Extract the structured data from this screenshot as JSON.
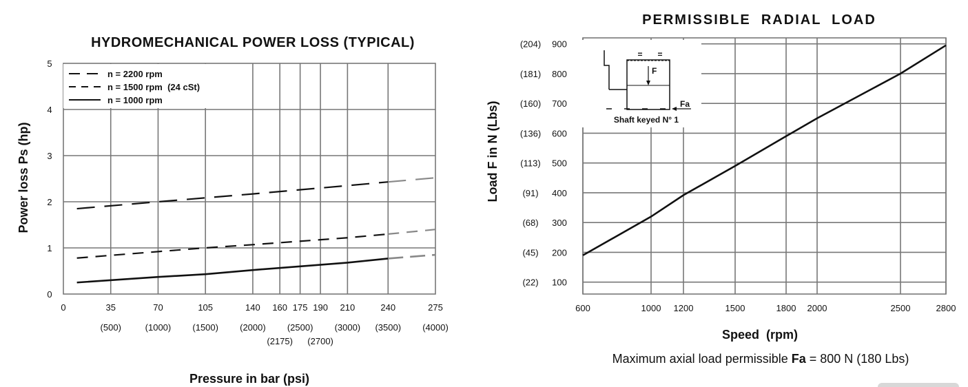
{
  "chart_data": [
    {
      "type": "line",
      "title": "HYDROMECHANICAL POWER LOSS (TYPICAL)",
      "xlabel": "Pressure in bar (psi)",
      "ylabel": "Power loss Ps (hp)",
      "xlim": [
        0,
        275
      ],
      "ylim": [
        0,
        5
      ],
      "x_ticks": [
        0,
        35,
        70,
        105,
        140,
        160,
        175,
        190,
        210,
        240,
        275
      ],
      "x_ticks_psi": [
        "(500)",
        "(1000)",
        "(1500)",
        "(2000)",
        "(2175)",
        "(2500)",
        "(2700)",
        "(3000)",
        "(3500)",
        "(4000)"
      ],
      "y_ticks": [
        0,
        1,
        2,
        3,
        4,
        5
      ],
      "grid": true,
      "legend_position": "top-left",
      "series": [
        {
          "name": "n = 2200 rpm",
          "dash": "long-dash",
          "x": [
            10,
            70,
            140,
            210,
            240,
            275
          ],
          "values": [
            1.85,
            2.0,
            2.17,
            2.35,
            2.43,
            2.52
          ]
        },
        {
          "name": "n = 1500 rpm  (24 cSt)",
          "dash": "dash",
          "x": [
            10,
            70,
            105,
            140,
            210,
            240,
            275
          ],
          "values": [
            0.78,
            0.92,
            1.0,
            1.07,
            1.22,
            1.3,
            1.4
          ]
        },
        {
          "name": "n = 1000 rpm",
          "dash": "solid",
          "x": [
            10,
            70,
            105,
            140,
            175,
            210,
            240,
            275
          ],
          "values": [
            0.25,
            0.37,
            0.43,
            0.52,
            0.6,
            0.68,
            0.77,
            0.85
          ]
        }
      ]
    },
    {
      "type": "line",
      "title": "PERMISSIBLE  RADIAL  LOAD",
      "xlabel": "Speed  (rpm)",
      "ylabel": "Load F in N (Lbs)",
      "xlim": [
        600,
        2800
      ],
      "ylim": [
        60,
        920
      ],
      "x_ticks": [
        600,
        1000,
        1200,
        1500,
        1800,
        2000,
        2500,
        2800
      ],
      "y_ticks": [
        100,
        200,
        300,
        400,
        500,
        600,
        700,
        800,
        900
      ],
      "y_ticks_lbs": [
        "(22)",
        "(45)",
        "(68)",
        "(91)",
        "(113)",
        "(136)",
        "(160)",
        "(181)",
        "(204)"
      ],
      "grid": true,
      "series": [
        {
          "x": [
            600,
            1000,
            1200,
            1500,
            1800,
            2000,
            2500,
            2800
          ],
          "values": [
            190,
            320,
            392,
            490,
            590,
            650,
            800,
            895
          ]
        }
      ],
      "inset": {
        "labels": [
          "=",
          "=",
          "F",
          "Fa"
        ],
        "caption": "Shaft keyed N° 1"
      },
      "note": {
        "prefix": "Maximum axial load permissible ",
        "bold": "Fa",
        "suffix": " = 800 N (180 Lbs)"
      }
    }
  ]
}
